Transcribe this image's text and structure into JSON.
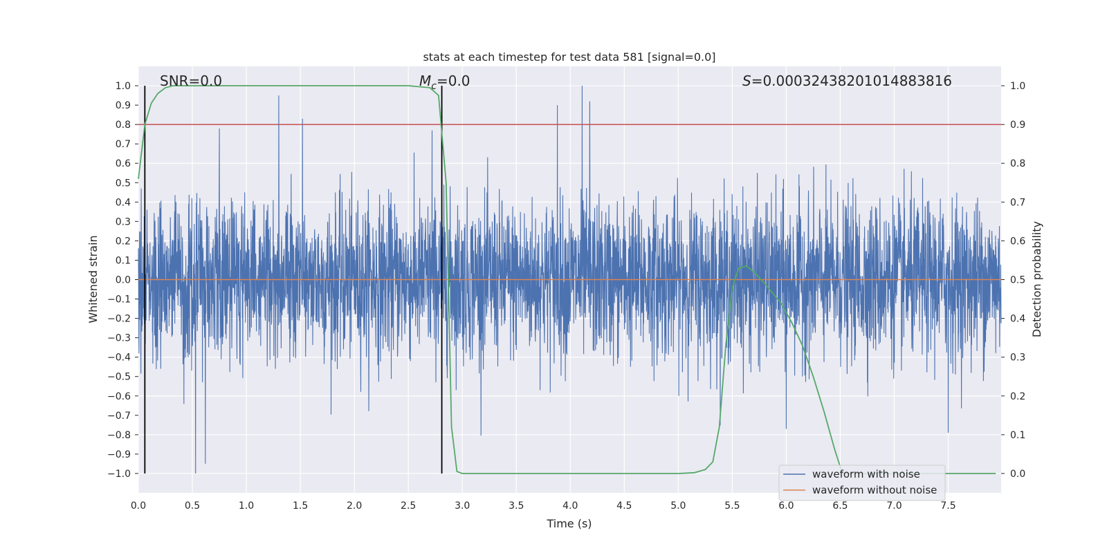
{
  "chart_data": {
    "type": "line",
    "title": "stats at each timestep for test data 581 [signal=0.0]",
    "xlabel": "Time (s)",
    "ylabel": "Whitened strain",
    "ylabel_right": "Detection probability",
    "xlim": [
      0.0,
      7.99
    ],
    "ylim": [
      -1.1,
      1.1
    ],
    "ylim_right": [
      -0.05,
      1.05
    ],
    "x_ticks": [
      "0.0",
      "0.5",
      "1.0",
      "1.5",
      "2.0",
      "2.5",
      "3.0",
      "3.5",
      "4.0",
      "4.5",
      "5.0",
      "5.5",
      "6.0",
      "6.5",
      "7.0",
      "7.5"
    ],
    "y_ticks": [
      "1.0",
      "0.9",
      "0.8",
      "0.7",
      "0.6",
      "0.5",
      "0.4",
      "0.3",
      "0.2",
      "0.1",
      "0.0",
      "−0.1",
      "−0.2",
      "−0.3",
      "−0.4",
      "−0.5",
      "−0.6",
      "−0.7",
      "−0.8",
      "−0.9",
      "−1.0"
    ],
    "y_ticks_right": [
      "1.0",
      "0.9",
      "0.8",
      "0.7",
      "0.6",
      "0.5",
      "0.4",
      "0.3",
      "0.2",
      "0.1",
      "0.0"
    ],
    "grid": true,
    "legend_position": "bottom-right",
    "annotations": {
      "snr": "SNR=0.0",
      "mc_symbol": "M",
      "mc_sub": "c",
      "mc_value": "=0.0",
      "s_symbol": "S",
      "s_value": "=0.0003243820101488381 6"
    },
    "vertical_lines_x": [
      0.06,
      2.81
    ],
    "threshold_right": 0.9,
    "series": [
      {
        "name": "waveform with noise",
        "color": "#4c72b0",
        "peaks": [
          {
            "x": 0.53,
            "y": -1.0
          },
          {
            "x": 0.62,
            "y": -0.95
          },
          {
            "x": 1.3,
            "y": 0.95
          },
          {
            "x": 1.52,
            "y": 0.83
          },
          {
            "x": 2.72,
            "y": 0.77
          },
          {
            "x": 3.88,
            "y": 0.9
          },
          {
            "x": 4.11,
            "y": 1.0
          },
          {
            "x": 4.18,
            "y": 0.92
          },
          {
            "x": 7.5,
            "y": -0.79
          },
          {
            "x": 0.75,
            "y": 0.78
          },
          {
            "x": 6.0,
            "y": -0.77
          }
        ]
      },
      {
        "name": "waveform without noise",
        "color": "#dd8452",
        "y": 0.0
      },
      {
        "name": "Detection probability",
        "color": "#55a868",
        "axis": "right",
        "x": [
          0.0,
          0.06,
          0.12,
          0.18,
          0.25,
          0.32,
          0.4,
          1.0,
          2.0,
          2.5,
          2.7,
          2.78,
          2.85,
          2.9,
          2.95,
          3.0,
          3.1,
          4.0,
          5.0,
          5.15,
          5.25,
          5.32,
          5.38,
          5.44,
          5.5,
          5.56,
          5.63,
          5.7,
          5.8,
          5.95,
          6.05,
          6.15,
          6.25,
          6.35,
          6.45,
          6.52,
          7.0,
          7.5,
          7.94
        ],
        "y": [
          0.76,
          0.9,
          0.955,
          0.98,
          0.995,
          1.0,
          1.0,
          1.0,
          1.0,
          1.0,
          0.995,
          0.975,
          0.75,
          0.12,
          0.005,
          0.0,
          0.0,
          0.0,
          0.0,
          0.002,
          0.01,
          0.03,
          0.12,
          0.33,
          0.48,
          0.53,
          0.535,
          0.52,
          0.49,
          0.44,
          0.39,
          0.33,
          0.25,
          0.16,
          0.06,
          0.0,
          0.0,
          0.0,
          0.0
        ]
      }
    ]
  }
}
